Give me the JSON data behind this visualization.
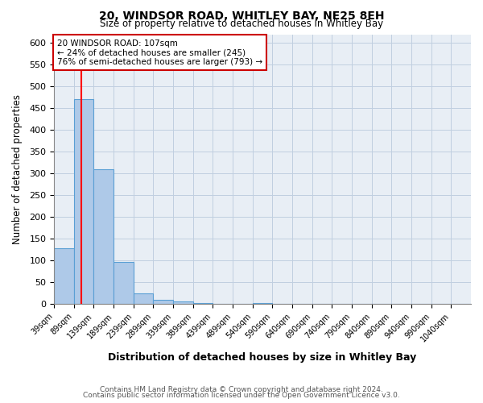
{
  "title1": "20, WINDSOR ROAD, WHITLEY BAY, NE25 8EH",
  "title2": "Size of property relative to detached houses in Whitley Bay",
  "xlabel": "Distribution of detached houses by size in Whitley Bay",
  "ylabel": "Number of detached properties",
  "bin_edges": [
    39,
    89,
    139,
    189,
    239,
    289,
    339,
    389,
    439,
    489,
    539,
    589,
    639,
    689,
    739,
    789,
    839,
    889,
    939,
    989,
    1039,
    1089
  ],
  "bin_labels": [
    "39sqm",
    "89sqm",
    "139sqm",
    "189sqm",
    "239sqm",
    "289sqm",
    "339sqm",
    "389sqm",
    "439sqm",
    "489sqm",
    "540sqm",
    "590sqm",
    "640sqm",
    "690sqm",
    "740sqm",
    "790sqm",
    "840sqm",
    "890sqm",
    "940sqm",
    "990sqm",
    "1040sqm"
  ],
  "counts": [
    128,
    470,
    310,
    96,
    25,
    10,
    5,
    2,
    1,
    0,
    2,
    0,
    1,
    0,
    0,
    0,
    0,
    0,
    0,
    0,
    1
  ],
  "bar_color": "#aec9e8",
  "bar_edge_color": "#5a9fd4",
  "bg_color": "#e8eef5",
  "red_line_x": 107,
  "annotation_text": "20 WINDSOR ROAD: 107sqm\n← 24% of detached houses are smaller (245)\n76% of semi-detached houses are larger (793) →",
  "annotation_box_color": "#ffffff",
  "annotation_border_color": "#cc0000",
  "footer1": "Contains HM Land Registry data © Crown copyright and database right 2024.",
  "footer2": "Contains public sector information licensed under the Open Government Licence v3.0.",
  "ylim": [
    0,
    620
  ],
  "yticks": [
    0,
    50,
    100,
    150,
    200,
    250,
    300,
    350,
    400,
    450,
    500,
    550,
    600
  ]
}
